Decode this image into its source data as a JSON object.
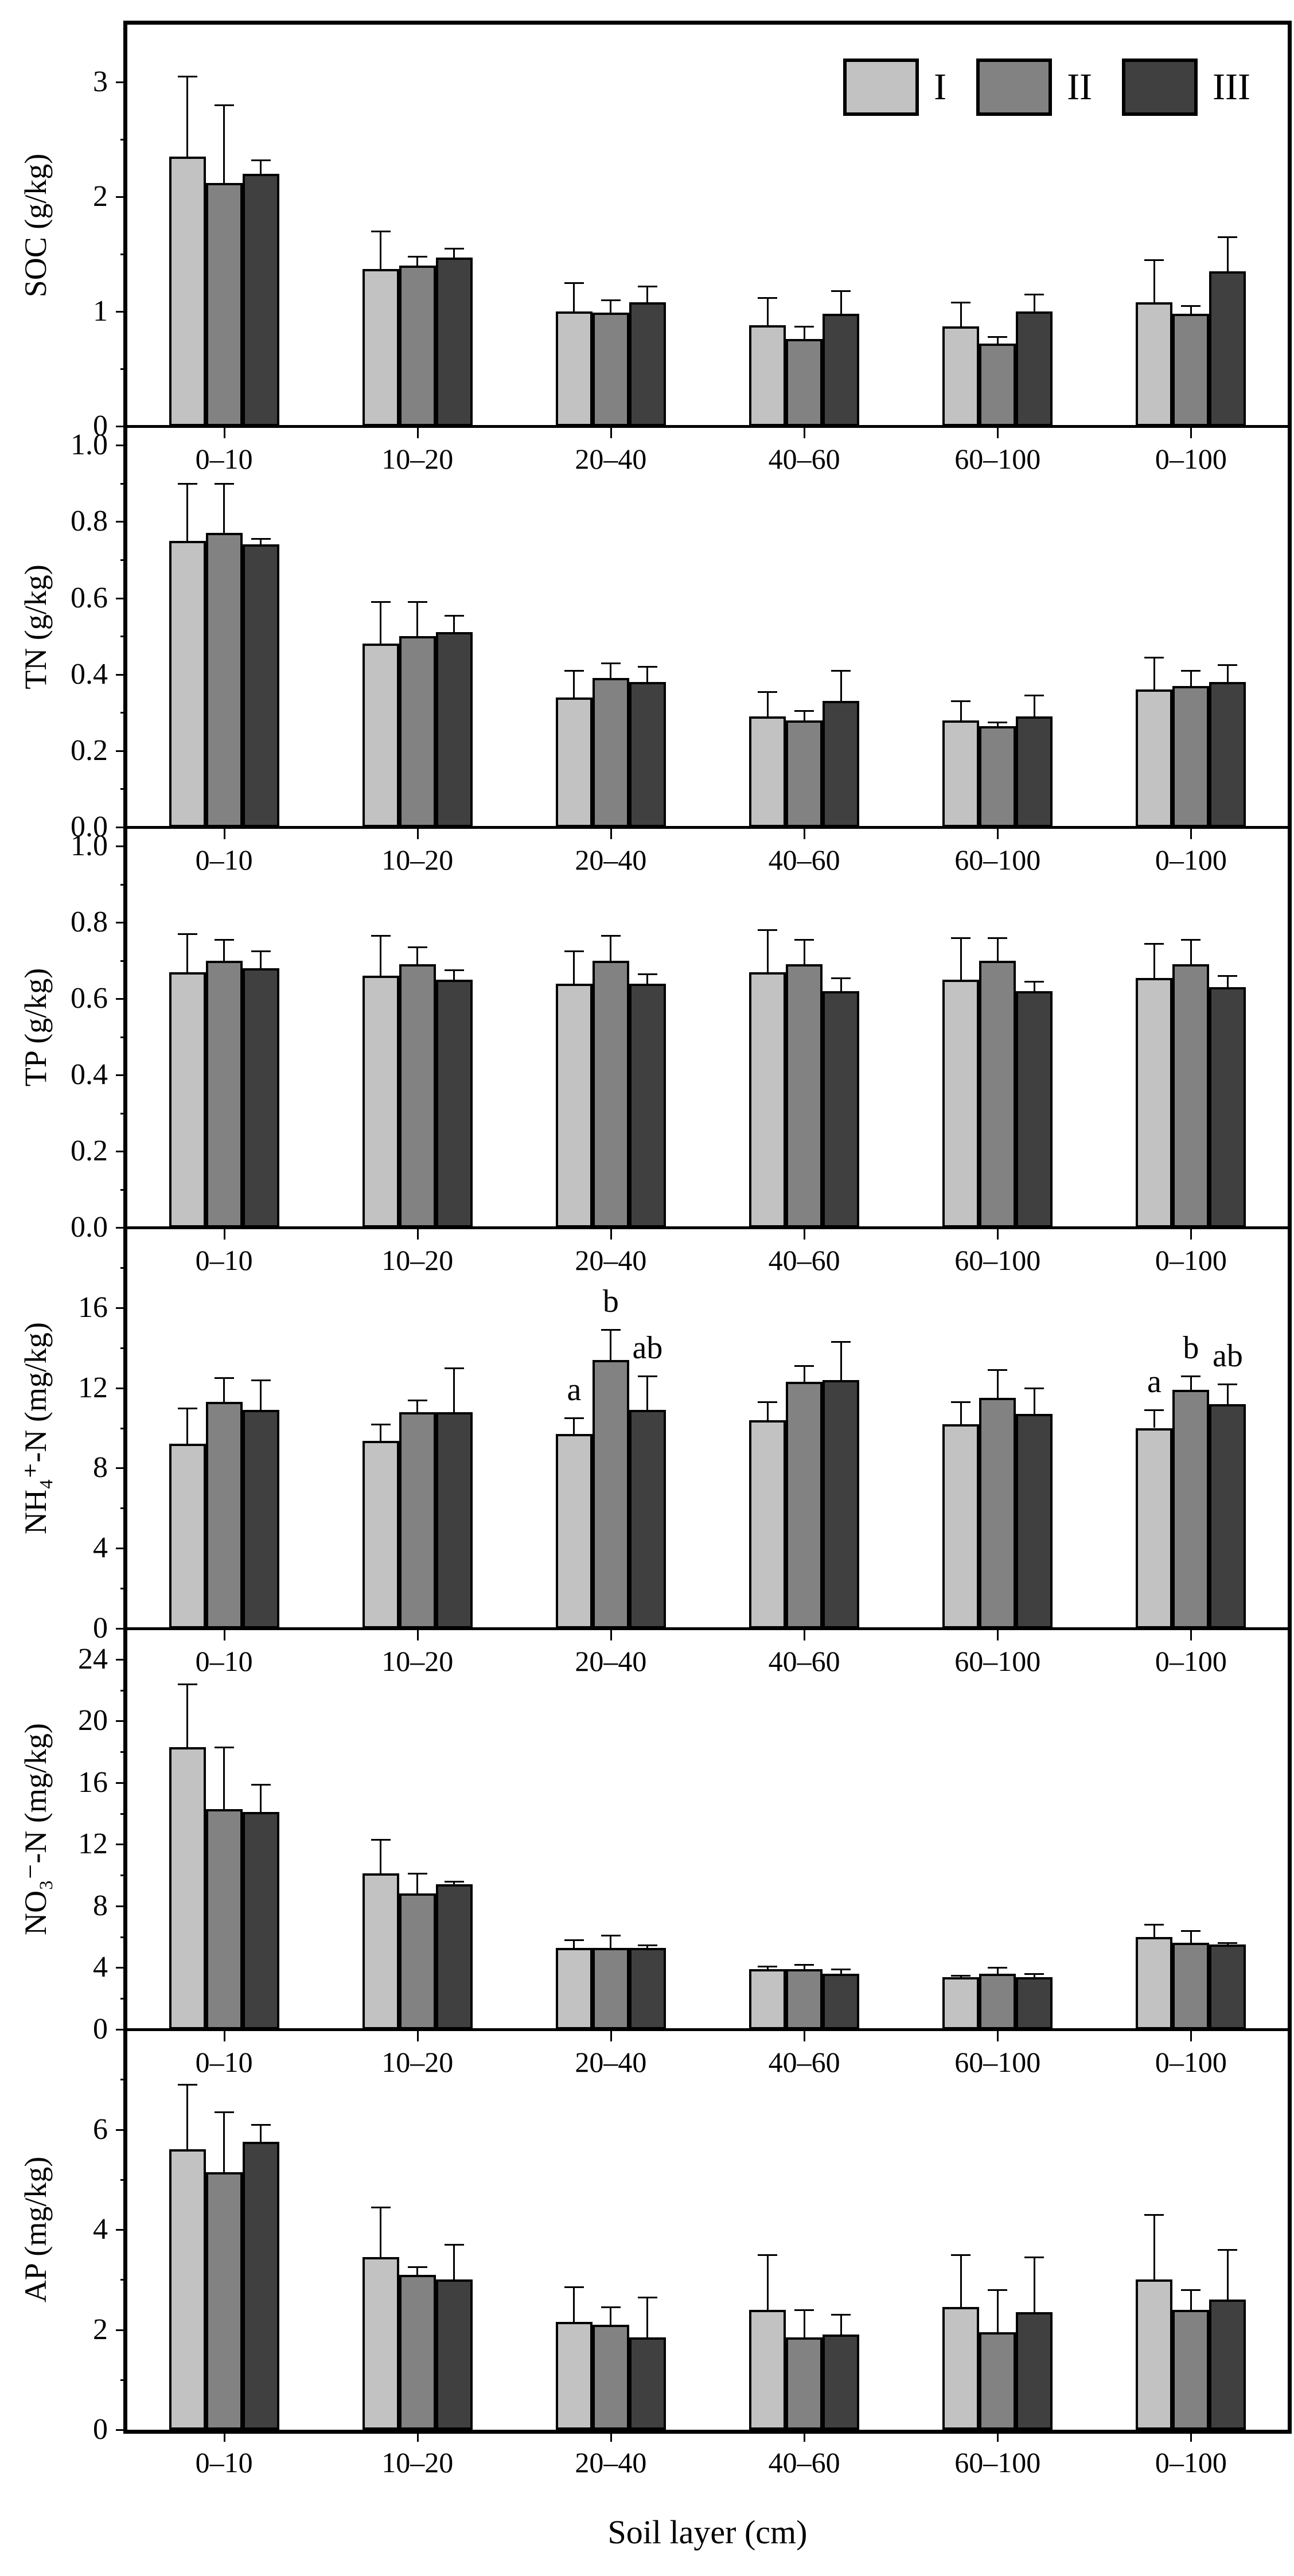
{
  "figure": {
    "x_axis_label": "Soil layer (cm)",
    "legend": {
      "items": [
        {
          "label": "I",
          "color": "#c2c2c2"
        },
        {
          "label": "II",
          "color": "#828282"
        },
        {
          "label": "III",
          "color": "#404040"
        }
      ]
    }
  },
  "chart_data": [
    {
      "type": "bar",
      "title": "",
      "ylabel": "SOC (g/kg)",
      "xlabel": "Soil layer (cm)",
      "categories": [
        "0–10",
        "10–20",
        "20–40",
        "40–60",
        "60–100",
        "0–100"
      ],
      "ylim": [
        0,
        3.5
      ],
      "yticks": [
        {
          "v": 0,
          "label": "0"
        },
        {
          "v": 1,
          "label": "1"
        },
        {
          "v": 2,
          "label": "2"
        },
        {
          "v": 3,
          "label": "3"
        }
      ],
      "minor_step": 0.5,
      "grid": false,
      "legend_position": "top-right",
      "series": [
        {
          "name": "I",
          "values": [
            2.35,
            1.37,
            1.0,
            0.88,
            0.87,
            1.08
          ],
          "errors": [
            0.7,
            0.33,
            0.25,
            0.24,
            0.21,
            0.37
          ]
        },
        {
          "name": "II",
          "values": [
            2.12,
            1.4,
            0.99,
            0.76,
            0.72,
            0.98
          ],
          "errors": [
            0.68,
            0.08,
            0.11,
            0.11,
            0.06,
            0.07
          ]
        },
        {
          "name": "III",
          "values": [
            2.2,
            1.47,
            1.08,
            0.98,
            1.0,
            1.35
          ],
          "errors": [
            0.12,
            0.08,
            0.14,
            0.2,
            0.15,
            0.3
          ]
        }
      ],
      "annotations": []
    },
    {
      "type": "bar",
      "ylabel": "TN (g/kg)",
      "categories": [
        "0–10",
        "10–20",
        "20–40",
        "40–60",
        "60–100",
        "0–100"
      ],
      "ylim": [
        0,
        1.05
      ],
      "yticks": [
        {
          "v": 0,
          "label": "0.0"
        },
        {
          "v": 0.2,
          "label": "0.2"
        },
        {
          "v": 0.4,
          "label": "0.4"
        },
        {
          "v": 0.6,
          "label": "0.6"
        },
        {
          "v": 0.8,
          "label": "0.8"
        },
        {
          "v": 1.0,
          "label": "1.0"
        }
      ],
      "minor_step": 0.1,
      "grid": false,
      "series": [
        {
          "name": "I",
          "values": [
            0.75,
            0.48,
            0.34,
            0.29,
            0.28,
            0.36
          ],
          "errors": [
            0.15,
            0.11,
            0.07,
            0.065,
            0.05,
            0.085
          ]
        },
        {
          "name": "II",
          "values": [
            0.77,
            0.5,
            0.39,
            0.28,
            0.265,
            0.37
          ],
          "errors": [
            0.13,
            0.09,
            0.04,
            0.025,
            0.01,
            0.04
          ]
        },
        {
          "name": "III",
          "values": [
            0.74,
            0.51,
            0.38,
            0.33,
            0.29,
            0.38
          ],
          "errors": [
            0.015,
            0.045,
            0.04,
            0.08,
            0.055,
            0.045
          ]
        }
      ],
      "annotations": []
    },
    {
      "type": "bar",
      "ylabel": "TP (g/kg)",
      "categories": [
        "0–10",
        "10–20",
        "20–40",
        "40–60",
        "60–100",
        "0–100"
      ],
      "ylim": [
        0,
        1.05
      ],
      "yticks": [
        {
          "v": 0,
          "label": "0.0"
        },
        {
          "v": 0.2,
          "label": "0.2"
        },
        {
          "v": 0.4,
          "label": "0.4"
        },
        {
          "v": 0.6,
          "label": "0.6"
        },
        {
          "v": 0.8,
          "label": "0.8"
        },
        {
          "v": 1.0,
          "label": "1.0"
        }
      ],
      "minor_step": 0.1,
      "grid": false,
      "series": [
        {
          "name": "I",
          "values": [
            0.67,
            0.66,
            0.64,
            0.67,
            0.65,
            0.655
          ],
          "errors": [
            0.1,
            0.105,
            0.085,
            0.11,
            0.11,
            0.09
          ]
        },
        {
          "name": "II",
          "values": [
            0.7,
            0.69,
            0.7,
            0.69,
            0.7,
            0.69
          ],
          "errors": [
            0.055,
            0.045,
            0.065,
            0.065,
            0.06,
            0.065
          ]
        },
        {
          "name": "III",
          "values": [
            0.68,
            0.65,
            0.64,
            0.62,
            0.62,
            0.63
          ],
          "errors": [
            0.045,
            0.025,
            0.025,
            0.035,
            0.025,
            0.03
          ]
        }
      ],
      "annotations": []
    },
    {
      "type": "bar",
      "ylabel": "NH₄⁺-N (mg/kg)",
      "categories": [
        "0–10",
        "10–20",
        "20–40",
        "40–60",
        "60–100",
        "0–100"
      ],
      "ylim": [
        0,
        20
      ],
      "yticks": [
        {
          "v": 0,
          "label": "0"
        },
        {
          "v": 4,
          "label": "4"
        },
        {
          "v": 8,
          "label": "8"
        },
        {
          "v": 12,
          "label": "12"
        },
        {
          "v": 16,
          "label": "16"
        }
      ],
      "minor_step": 2,
      "grid": false,
      "series": [
        {
          "name": "I",
          "values": [
            9.2,
            9.35,
            9.7,
            10.4,
            10.2,
            10.0
          ],
          "errors": [
            1.8,
            0.85,
            0.8,
            0.9,
            1.1,
            0.9
          ]
        },
        {
          "name": "II",
          "values": [
            11.3,
            10.8,
            13.4,
            12.3,
            11.5,
            11.9
          ],
          "errors": [
            1.2,
            0.6,
            1.5,
            0.8,
            1.4,
            0.7
          ]
        },
        {
          "name": "III",
          "values": [
            10.9,
            10.8,
            10.9,
            12.4,
            10.7,
            11.2
          ],
          "errors": [
            1.5,
            2.2,
            1.7,
            1.9,
            1.3,
            1.0
          ]
        }
      ],
      "annotations": [
        {
          "category_index": 2,
          "series_index": 0,
          "text": "a"
        },
        {
          "category_index": 2,
          "series_index": 1,
          "text": "b"
        },
        {
          "category_index": 2,
          "series_index": 2,
          "text": "ab"
        },
        {
          "category_index": 5,
          "series_index": 0,
          "text": "a"
        },
        {
          "category_index": 5,
          "series_index": 1,
          "text": "b"
        },
        {
          "category_index": 5,
          "series_index": 2,
          "text": "ab"
        }
      ]
    },
    {
      "type": "bar",
      "ylabel": "NO₃⁻-N (mg/kg)",
      "categories": [
        "0–10",
        "10–20",
        "20–40",
        "40–60",
        "60–100",
        "0–100"
      ],
      "ylim": [
        0,
        26
      ],
      "yticks": [
        {
          "v": 0,
          "label": "0"
        },
        {
          "v": 4,
          "label": "4"
        },
        {
          "v": 8,
          "label": "8"
        },
        {
          "v": 12,
          "label": "12"
        },
        {
          "v": 16,
          "label": "16"
        },
        {
          "v": 20,
          "label": "20"
        },
        {
          "v": 24,
          "label": "24"
        }
      ],
      "minor_step": 2,
      "grid": false,
      "series": [
        {
          "name": "I",
          "values": [
            18.3,
            10.1,
            5.3,
            3.9,
            3.4,
            6.0
          ],
          "errors": [
            4.1,
            2.2,
            0.5,
            0.2,
            0.1,
            0.8
          ]
        },
        {
          "name": "II",
          "values": [
            14.3,
            8.8,
            5.3,
            3.9,
            3.6,
            5.6
          ],
          "errors": [
            4.0,
            1.3,
            0.8,
            0.3,
            0.4,
            0.8
          ]
        },
        {
          "name": "III",
          "values": [
            14.1,
            9.4,
            5.3,
            3.6,
            3.4,
            5.5
          ],
          "errors": [
            1.8,
            0.2,
            0.15,
            0.3,
            0.2,
            0.1
          ]
        }
      ],
      "annotations": []
    },
    {
      "type": "bar",
      "ylabel": "AP (mg/kg)",
      "categories": [
        "0–10",
        "10–20",
        "20–40",
        "40–60",
        "60–100",
        "0–100"
      ],
      "ylim": [
        0,
        8
      ],
      "yticks": [
        {
          "v": 0,
          "label": "0"
        },
        {
          "v": 2,
          "label": "2"
        },
        {
          "v": 4,
          "label": "4"
        },
        {
          "v": 6,
          "label": "6"
        }
      ],
      "minor_step": 1,
      "grid": false,
      "series": [
        {
          "name": "I",
          "values": [
            5.6,
            3.45,
            2.15,
            2.4,
            2.45,
            3.0
          ],
          "errors": [
            1.3,
            1.0,
            0.7,
            1.1,
            1.05,
            1.3
          ]
        },
        {
          "name": "II",
          "values": [
            5.15,
            3.1,
            2.1,
            1.85,
            1.95,
            2.4
          ],
          "errors": [
            1.2,
            0.15,
            0.35,
            0.55,
            0.85,
            0.4
          ]
        },
        {
          "name": "III",
          "values": [
            5.75,
            3.0,
            1.85,
            1.9,
            2.35,
            2.6
          ],
          "errors": [
            0.35,
            0.7,
            0.8,
            0.4,
            1.1,
            1.0
          ]
        }
      ],
      "annotations": []
    }
  ]
}
